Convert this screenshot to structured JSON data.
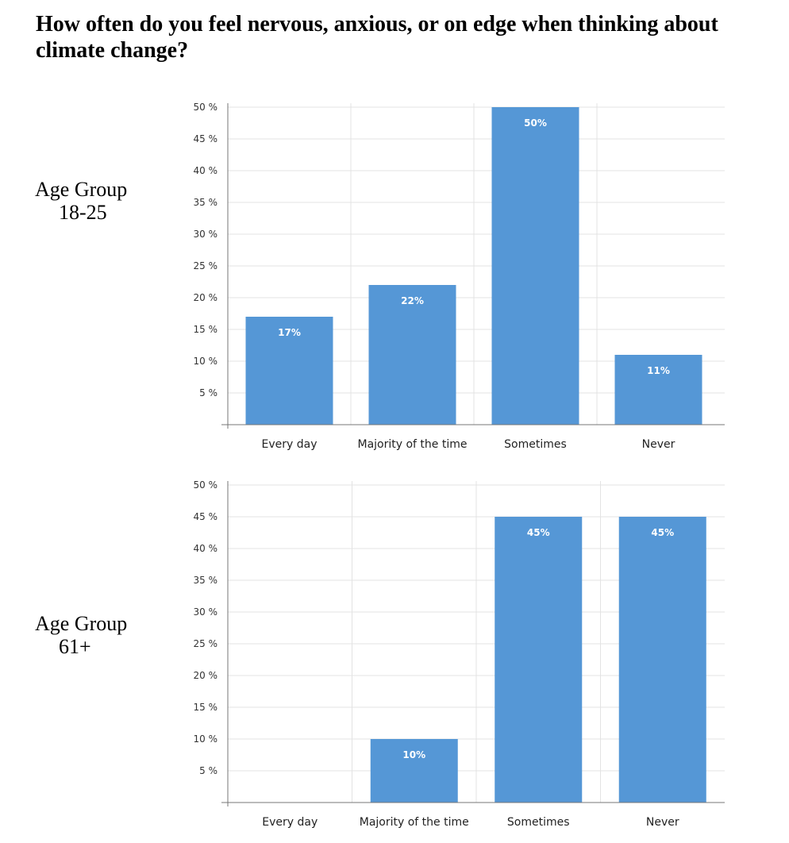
{
  "title": "How often do you feel nervous, anxious, or on edge when thinking about climate change?",
  "colors": {
    "bar": "#5597d6",
    "grid": "#e3e3e3",
    "axis": "#777777"
  },
  "groups": [
    {
      "line1": "Age Group",
      "line2": "18-25"
    },
    {
      "line1": "Age Group",
      "line2": "61+"
    }
  ],
  "chart_data": [
    {
      "type": "bar",
      "title": "",
      "xlabel": "",
      "ylabel": "",
      "categories": [
        "Every day",
        "Majority of the time",
        "Sometimes",
        "Never"
      ],
      "values": [
        17,
        22,
        50,
        11
      ],
      "data_labels": [
        "17%",
        "22%",
        "50%",
        "11%"
      ],
      "yticks": [
        5,
        10,
        15,
        20,
        25,
        30,
        35,
        40,
        45,
        50
      ],
      "ytick_labels": [
        "5 %",
        "10 %",
        "15 %",
        "20 %",
        "25 %",
        "30 %",
        "35 %",
        "40 %",
        "45 %",
        "50 %"
      ],
      "ylim": [
        0,
        50
      ],
      "grid": true,
      "legend": "none"
    },
    {
      "type": "bar",
      "title": "",
      "xlabel": "",
      "ylabel": "",
      "categories": [
        "Every day",
        "Majority of the time",
        "Sometimes",
        "Never"
      ],
      "values": [
        0,
        10,
        45,
        45
      ],
      "data_labels": [
        "",
        "10%",
        "45%",
        "45%"
      ],
      "yticks": [
        5,
        10,
        15,
        20,
        25,
        30,
        35,
        40,
        45,
        50
      ],
      "ytick_labels": [
        "5 %",
        "10 %",
        "15 %",
        "20 %",
        "25 %",
        "30 %",
        "35 %",
        "40 %",
        "45 %",
        "50 %"
      ],
      "ylim": [
        0,
        50
      ],
      "grid": true,
      "legend": "none"
    }
  ]
}
